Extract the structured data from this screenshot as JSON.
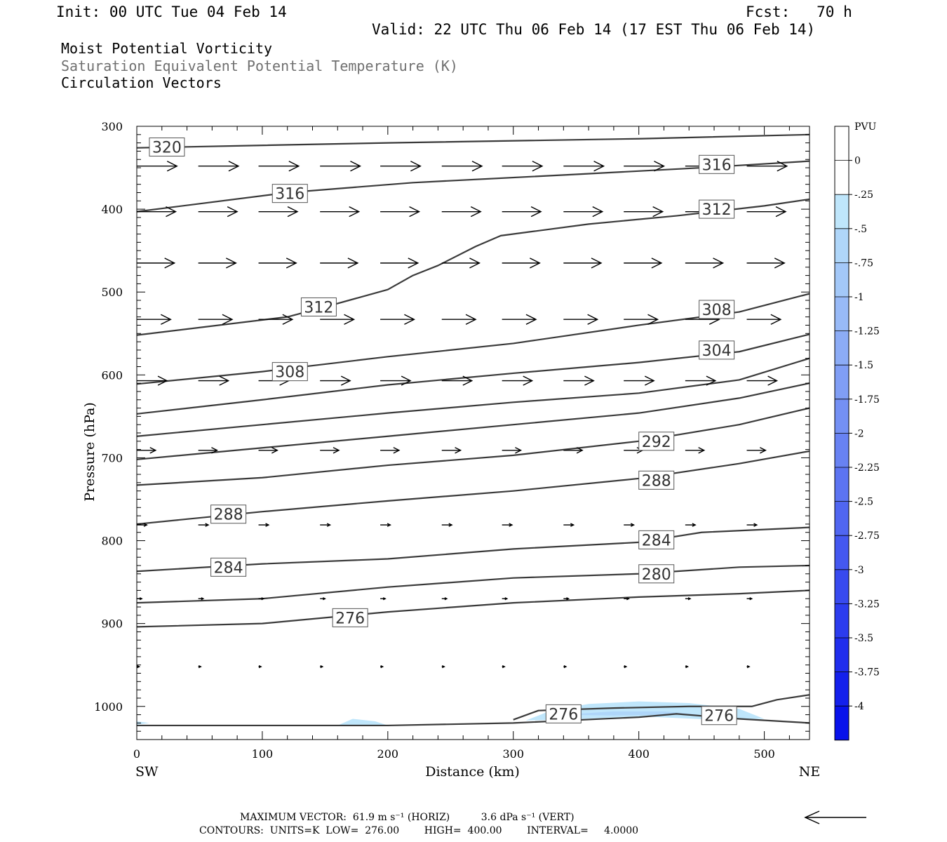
{
  "header": {
    "init": "Init: 00 UTC Tue 04 Feb 14",
    "fcst": "Fcst:   70 h",
    "valid": "Valid: 22 UTC Thu 06 Feb 14 (17 EST Thu 06 Feb 14)"
  },
  "titles": {
    "line1": "Moist Potential Vorticity",
    "line2": "Saturation Equivalent Potential Temperature (K)",
    "line3": "Circulation Vectors"
  },
  "colors": {
    "contour": "#3a3a3a",
    "title_gray": "#707070",
    "pv_shade_light": "#bfe6fb",
    "pv_shade_mid": "#a9d2f7"
  },
  "chart_data": {
    "type": "cross-section",
    "xlabel": "Distance (km)",
    "ylabel": "Pressure (hPa)",
    "xlim": [
      0,
      536
    ],
    "ylim": [
      1040,
      300
    ],
    "x_ticks": [
      0,
      100,
      200,
      300,
      400,
      500
    ],
    "y_ticks": [
      300,
      400,
      500,
      600,
      700,
      800,
      900,
      1000
    ],
    "x_end_labels": {
      "left": "SW",
      "right": "NE"
    },
    "contour_interval": 4,
    "contours": [
      {
        "level": 320,
        "points": [
          [
            0,
            326
          ],
          [
            200,
            320
          ],
          [
            400,
            315
          ],
          [
            536,
            310
          ]
        ],
        "labels": [
          [
            24,
            325
          ]
        ]
      },
      {
        "level": 316,
        "points": [
          [
            0,
            403
          ],
          [
            120,
            380
          ],
          [
            220,
            368
          ],
          [
            350,
            358
          ],
          [
            450,
            350
          ],
          [
            536,
            342
          ]
        ],
        "labels": [
          [
            122,
            381
          ],
          [
            462,
            346
          ]
        ]
      },
      {
        "level": 312,
        "points": [
          [
            0,
            552
          ],
          [
            120,
            530
          ],
          [
            150,
            518
          ],
          [
            200,
            497
          ],
          [
            220,
            480
          ],
          [
            240,
            468
          ],
          [
            270,
            445
          ],
          [
            290,
            432
          ],
          [
            360,
            418
          ],
          [
            430,
            408
          ],
          [
            500,
            396
          ],
          [
            536,
            388
          ]
        ],
        "labels": [
          [
            145,
            518
          ],
          [
            462,
            400
          ]
        ]
      },
      {
        "level": 308,
        "points": [
          [
            0,
            611
          ],
          [
            100,
            596
          ],
          [
            200,
            578
          ],
          [
            300,
            562
          ],
          [
            400,
            540
          ],
          [
            480,
            524
          ],
          [
            536,
            502
          ]
        ],
        "labels": [
          [
            122,
            596
          ],
          [
            462,
            521
          ]
        ]
      },
      {
        "level": 304,
        "points": [
          [
            0,
            647
          ],
          [
            100,
            630
          ],
          [
            200,
            612
          ],
          [
            300,
            598
          ],
          [
            400,
            585
          ],
          [
            480,
            572
          ],
          [
            536,
            551
          ]
        ],
        "labels": [
          [
            462,
            570
          ]
        ]
      },
      {
        "level": 300,
        "points": [
          [
            0,
            674
          ],
          [
            100,
            660
          ],
          [
            200,
            646
          ],
          [
            300,
            633
          ],
          [
            400,
            622
          ],
          [
            480,
            606
          ],
          [
            536,
            580
          ]
        ],
        "labels": []
      },
      {
        "level": 296,
        "points": [
          [
            0,
            702
          ],
          [
            100,
            688
          ],
          [
            200,
            674
          ],
          [
            300,
            660
          ],
          [
            400,
            646
          ],
          [
            480,
            628
          ],
          [
            536,
            610
          ]
        ],
        "labels": []
      },
      {
        "level": 292,
        "points": [
          [
            0,
            733
          ],
          [
            100,
            724
          ],
          [
            200,
            709
          ],
          [
            300,
            697
          ],
          [
            400,
            680
          ],
          [
            480,
            660
          ],
          [
            536,
            640
          ]
        ],
        "labels": [
          [
            414,
            680
          ]
        ]
      },
      {
        "level": 288,
        "points": [
          [
            0,
            780
          ],
          [
            100,
            765
          ],
          [
            200,
            752
          ],
          [
            300,
            740
          ],
          [
            400,
            725
          ],
          [
            480,
            707
          ],
          [
            536,
            692
          ]
        ],
        "labels": [
          [
            73,
            768
          ],
          [
            414,
            727
          ]
        ]
      },
      {
        "level": 284,
        "points": [
          [
            0,
            837
          ],
          [
            100,
            828
          ],
          [
            200,
            822
          ],
          [
            300,
            810
          ],
          [
            400,
            802
          ],
          [
            450,
            790
          ],
          [
            536,
            784
          ]
        ],
        "labels": [
          [
            73,
            832
          ],
          [
            414,
            799
          ]
        ]
      },
      {
        "level": 280,
        "points": [
          [
            0,
            875
          ],
          [
            100,
            870
          ],
          [
            200,
            856
          ],
          [
            300,
            845
          ],
          [
            400,
            840
          ],
          [
            480,
            832
          ],
          [
            536,
            830
          ]
        ],
        "labels": [
          [
            414,
            840
          ]
        ]
      },
      {
        "level": 276,
        "points": [
          [
            0,
            904
          ],
          [
            100,
            900
          ],
          [
            200,
            886
          ],
          [
            300,
            875
          ],
          [
            400,
            868
          ],
          [
            480,
            864
          ],
          [
            536,
            860
          ]
        ],
        "labels": [
          [
            170,
            893
          ]
        ]
      },
      {
        "level": 276,
        "points": [
          [
            300,
            1016
          ],
          [
            320,
            1005
          ],
          [
            380,
            1002
          ],
          [
            440,
            1000
          ],
          [
            490,
            1000
          ],
          [
            510,
            992
          ],
          [
            536,
            986
          ]
        ],
        "labels": [
          [
            340,
            1009
          ],
          [
            464,
            1011
          ]
        ]
      },
      {
        "level": 276,
        "points": [
          [
            0,
            1023
          ],
          [
            200,
            1023
          ],
          [
            300,
            1020
          ],
          [
            400,
            1013
          ],
          [
            430,
            1009
          ],
          [
            480,
            1015
          ],
          [
            536,
            1020
          ]
        ],
        "labels": []
      }
    ],
    "pv_shading": [
      {
        "pvu": [
          -0.25,
          0
        ],
        "points": [
          [
            310,
            1017
          ],
          [
            330,
            1005
          ],
          [
            360,
            997
          ],
          [
            400,
            994
          ],
          [
            440,
            996
          ],
          [
            480,
            1003
          ],
          [
            500,
            1015
          ],
          [
            460,
            1016
          ],
          [
            400,
            1012
          ],
          [
            340,
            1016
          ]
        ]
      },
      {
        "pvu": [
          -0.5,
          -0.25
        ],
        "points": [
          [
            340,
            1010
          ],
          [
            380,
            1006
          ],
          [
            420,
            1006
          ],
          [
            450,
            1010
          ],
          [
            420,
            1010
          ],
          [
            380,
            1011
          ]
        ]
      },
      {
        "pvu": [
          -0.25,
          0
        ],
        "points": [
          [
            160,
            1023
          ],
          [
            172,
            1015
          ],
          [
            190,
            1018
          ],
          [
            200,
            1023
          ]
        ]
      },
      {
        "pvu": [
          -0.25,
          0
        ],
        "points": [
          [
            0,
            1018
          ],
          [
            10,
            1020
          ],
          [
            0,
            1022
          ]
        ]
      }
    ],
    "vector_rows": [
      {
        "p": 348,
        "x": [
          0,
          49,
          97,
          146,
          194,
          243,
          291,
          340,
          388,
          437,
          486
        ],
        "len_km": 32
      },
      {
        "p": 403,
        "x": [
          0,
          49,
          97,
          146,
          194,
          243,
          291,
          340,
          388,
          437,
          486
        ],
        "len_km": 31
      },
      {
        "p": 465,
        "x": [
          0,
          49,
          97,
          146,
          194,
          243,
          291,
          340,
          388,
          437,
          486
        ],
        "len_km": 30
      },
      {
        "p": 533,
        "x": [
          0,
          49,
          97,
          146,
          194,
          243,
          291,
          340,
          388,
          437,
          486
        ],
        "len_km": 27
      },
      {
        "p": 607,
        "x": [
          0,
          49,
          97,
          146,
          194,
          243,
          291,
          340,
          388,
          437,
          486
        ],
        "len_km": 24
      },
      {
        "p": 691,
        "x": [
          0,
          49,
          97,
          146,
          194,
          243,
          291,
          340,
          388,
          437,
          486
        ],
        "len_km": 15
      },
      {
        "p": 781,
        "x": [
          0,
          49,
          97,
          146,
          194,
          243,
          291,
          340,
          388,
          437,
          486
        ],
        "len_km": 8
      },
      {
        "p": 870,
        "x": [
          0,
          49,
          97,
          146,
          194,
          243,
          291,
          340,
          388,
          437,
          486
        ],
        "len_km": 4
      },
      {
        "p": 952,
        "x": [
          0,
          49,
          97,
          146,
          194,
          243,
          291,
          340,
          388,
          437,
          486
        ],
        "len_km": 2
      }
    ],
    "colorbar": {
      "unit": "PVU",
      "labels": [
        "0",
        "-.25",
        "-.5",
        "-.75",
        "-1",
        "-1.25",
        "-1.5",
        "-1.75",
        "-2",
        "-2.25",
        "-2.5",
        "-2.75",
        "-3",
        "-3.25",
        "-3.5",
        "-3.75",
        "-4"
      ],
      "colors": [
        "#ffffff",
        "#ffffff",
        "#bfe6fb",
        "#afd6f9",
        "#a3c8f8",
        "#98baf7",
        "#8cacf6",
        "#809ef5",
        "#7490f4",
        "#6882f3",
        "#5c74f2",
        "#5066f1",
        "#4458f0",
        "#384aef",
        "#2c3cee",
        "#202eed",
        "#1420ec",
        "#0812eb"
      ]
    }
  },
  "footer": {
    "line1": "MAXIMUM VECTOR:  61.9 m s⁻¹ (HORIZ)          3.6 dPa s⁻¹ (VERT)",
    "line2": "CONTOURS:  UNITS=K  LOW=  276.00        HIGH=  400.00        INTERVAL=     4.0000"
  }
}
